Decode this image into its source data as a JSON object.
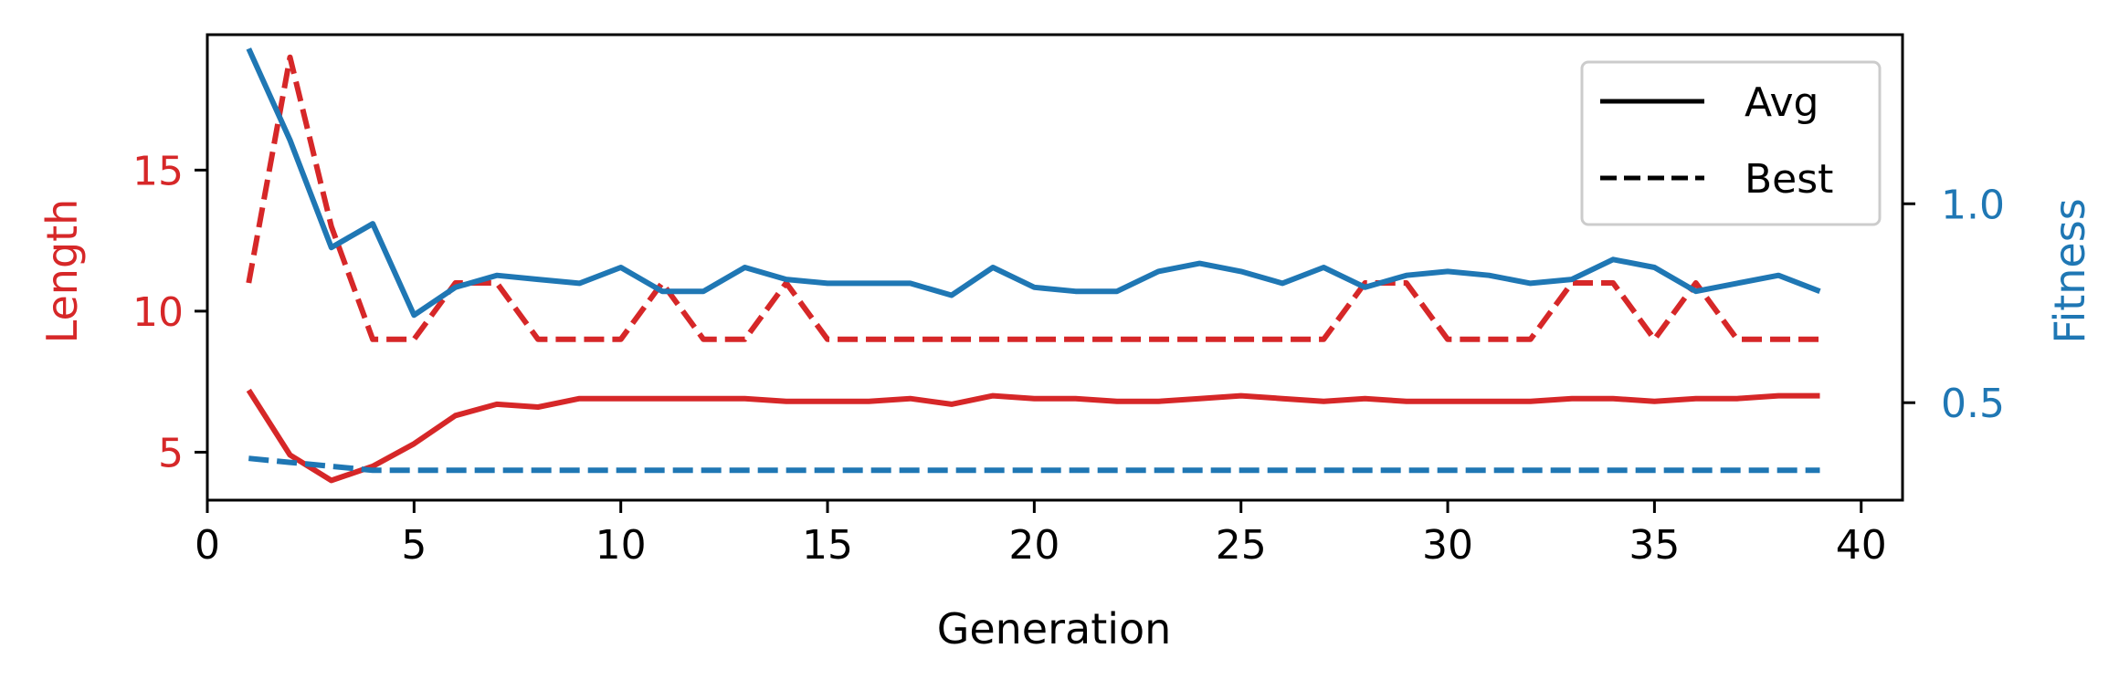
{
  "chart_data": {
    "type": "line",
    "xlabel": "Generation",
    "ylabel_left": "Length",
    "ylabel_right": "Fitness",
    "xlim": [
      0,
      41
    ],
    "ylim_left": [
      3.3,
      19.8
    ],
    "ylim_right": [
      0.255,
      1.425
    ],
    "xticks": [
      "0",
      "5",
      "10",
      "15",
      "20",
      "25",
      "30",
      "35",
      "40"
    ],
    "yticks_left": [
      "5",
      "10",
      "15"
    ],
    "yticks_right": [
      "0.5",
      "1.0"
    ],
    "colors": {
      "length": "#d62728",
      "fitness": "#1f77b4",
      "axes": "#000000"
    },
    "legend": {
      "position": "top-right",
      "entries": [
        {
          "label": "Avg",
          "style": "solid"
        },
        {
          "label": "Best",
          "style": "dashed"
        }
      ]
    },
    "x": [
      1,
      2,
      3,
      4,
      5,
      6,
      7,
      8,
      9,
      10,
      11,
      12,
      13,
      14,
      15,
      16,
      17,
      18,
      19,
      20,
      21,
      22,
      23,
      24,
      25,
      26,
      27,
      28,
      29,
      30,
      31,
      32,
      33,
      34,
      35,
      36,
      37,
      38,
      39
    ],
    "series": [
      {
        "name": "Avg",
        "axis": "left",
        "metric": "Length",
        "values": [
          7.2,
          4.9,
          4.0,
          4.5,
          5.3,
          6.3,
          6.7,
          6.6,
          6.9,
          6.9,
          6.9,
          6.9,
          6.9,
          6.8,
          6.8,
          6.8,
          6.9,
          6.7,
          7.0,
          6.9,
          6.9,
          6.8,
          6.8,
          6.9,
          7.0,
          6.9,
          6.8,
          6.9,
          6.8,
          6.8,
          6.8,
          6.8,
          6.9,
          6.9,
          6.8,
          6.9,
          6.9,
          7.0,
          7.0
        ]
      },
      {
        "name": "Best",
        "axis": "left",
        "metric": "Length",
        "values": [
          11,
          19,
          13,
          9,
          9,
          11,
          11,
          9,
          9,
          9,
          11,
          9,
          9,
          11,
          9,
          9,
          9,
          9,
          9,
          9,
          9,
          9,
          9,
          9,
          9,
          9,
          9,
          11,
          11,
          9,
          9,
          9,
          11,
          11,
          9,
          11,
          9,
          9,
          9
        ]
      },
      {
        "name": "Avg",
        "axis": "right",
        "metric": "Fitness",
        "values": [
          1.39,
          1.16,
          0.89,
          0.95,
          0.72,
          0.79,
          0.82,
          0.81,
          0.8,
          0.84,
          0.78,
          0.78,
          0.84,
          0.81,
          0.8,
          0.8,
          0.8,
          0.77,
          0.84,
          0.79,
          0.78,
          0.78,
          0.83,
          0.85,
          0.83,
          0.8,
          0.84,
          0.79,
          0.82,
          0.83,
          0.82,
          0.8,
          0.81,
          0.86,
          0.84,
          0.78,
          0.8,
          0.82,
          0.78
        ]
      },
      {
        "name": "Best",
        "axis": "right",
        "metric": "Fitness",
        "values": [
          0.36,
          0.35,
          0.34,
          0.33,
          0.33,
          0.33,
          0.33,
          0.33,
          0.33,
          0.33,
          0.33,
          0.33,
          0.33,
          0.33,
          0.33,
          0.33,
          0.33,
          0.33,
          0.33,
          0.33,
          0.33,
          0.33,
          0.33,
          0.33,
          0.33,
          0.33,
          0.33,
          0.33,
          0.33,
          0.33,
          0.33,
          0.33,
          0.33,
          0.33,
          0.33,
          0.33,
          0.33,
          0.33,
          0.33
        ]
      }
    ]
  }
}
